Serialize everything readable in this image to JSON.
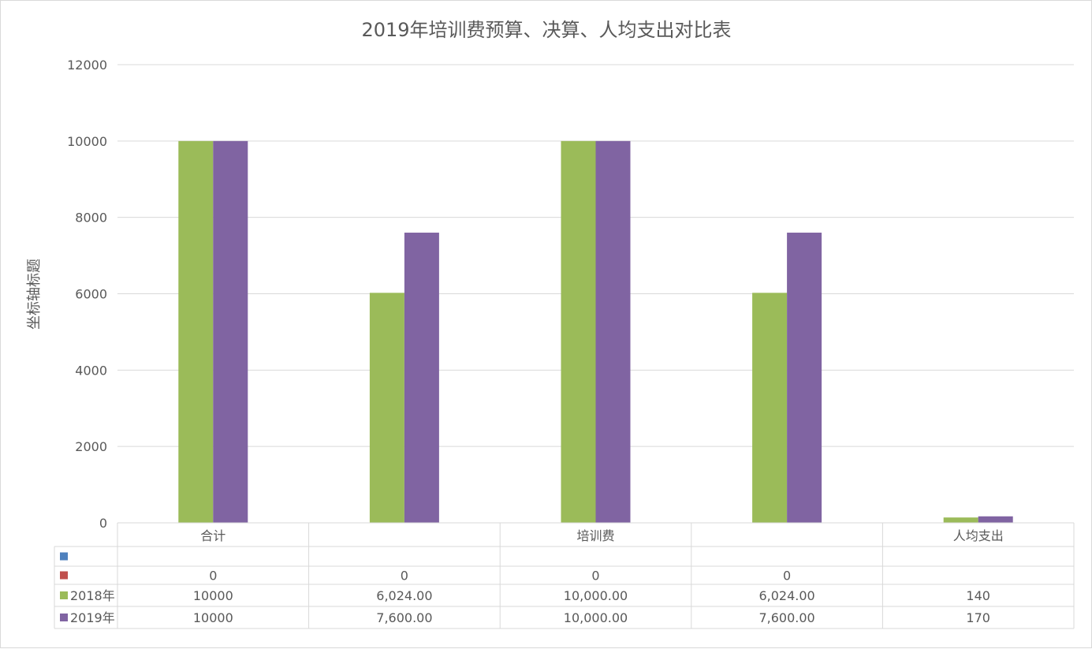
{
  "chart_data": {
    "type": "bar",
    "title": "2019年培训费预算、决算、人均支出对比表",
    "xlabel": "",
    "ylabel": "坐标轴标题",
    "ylim": [
      0,
      12000
    ],
    "yticks": [
      "0",
      "2000",
      "4000",
      "6000",
      "8000",
      "10000",
      "12000"
    ],
    "categories": [
      "合计",
      "",
      "培训费",
      "",
      "人均支出"
    ],
    "grid": true,
    "legend": "data-table",
    "series": [
      {
        "name": "",
        "color": "#4f81bd",
        "values": [
          null,
          null,
          null,
          null,
          null
        ],
        "labels": [
          "",
          "",
          "",
          "",
          ""
        ]
      },
      {
        "name": "",
        "color": "#c0504d",
        "values": [
          0,
          0,
          0,
          0,
          null
        ],
        "labels": [
          "0",
          "0",
          "0",
          "0",
          ""
        ]
      },
      {
        "name": "2018年",
        "color": "#9bbb59",
        "values": [
          10000,
          6024,
          10000,
          6024,
          140
        ],
        "labels": [
          "10000",
          "6,024.00",
          "10,000.00",
          "6,024.00",
          "140"
        ]
      },
      {
        "name": "2019年",
        "color": "#8064a2",
        "values": [
          10000,
          7600,
          10000,
          7600,
          170
        ],
        "labels": [
          "10000",
          "7,600.00",
          "10,000.00",
          "7,600.00",
          "170"
        ]
      }
    ]
  }
}
